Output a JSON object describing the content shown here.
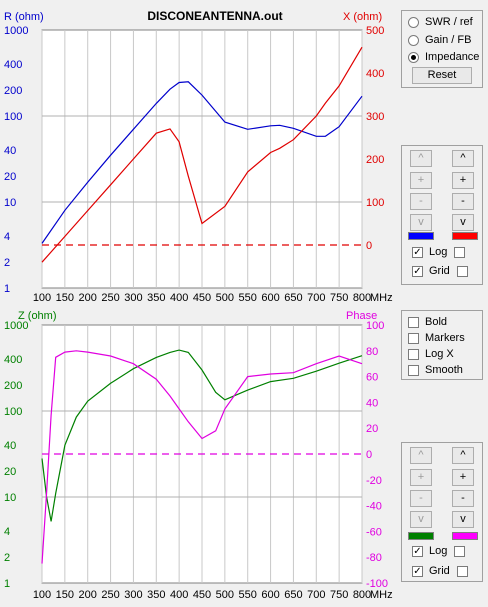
{
  "window_title": "DISCONEANTENNA.out",
  "top_chart": {
    "left_axis_label": "R (ohm)",
    "right_axis_label": "X (ohm)",
    "left_ticks": [
      "1000",
      "400",
      "200",
      "100",
      "40",
      "20",
      "10",
      "4",
      "2",
      "1"
    ],
    "right_ticks": [
      "500",
      "400",
      "300",
      "200",
      "100",
      "0"
    ],
    "left_color": "#0000cc",
    "right_color": "#e00000"
  },
  "bottom_chart": {
    "left_axis_label": "Z (ohm)",
    "right_axis_label": "Phase",
    "left_ticks": [
      "1000",
      "400",
      "200",
      "100",
      "40",
      "20",
      "10",
      "4",
      "2",
      "1"
    ],
    "right_ticks": [
      "100",
      "80",
      "60",
      "40",
      "20",
      "0",
      "-20",
      "-40",
      "-60",
      "-80",
      "-100"
    ],
    "left_color": "#008000",
    "right_color": "#e000e0"
  },
  "x_ticks": [
    "100",
    "150",
    "200",
    "250",
    "300",
    "350",
    "400",
    "450",
    "500",
    "550",
    "600",
    "650",
    "700",
    "750",
    "800"
  ],
  "x_unit": "MHz",
  "chart_data": [
    {
      "type": "line",
      "title": "DISCONEANTENNA.out",
      "xlabel": "MHz",
      "ylabel": "R (ohm)",
      "y2label": "X (ohm)",
      "xlim": [
        100,
        800
      ],
      "ylim": [
        1,
        1000
      ],
      "y_scale": "log",
      "y2lim": [
        -100,
        500
      ],
      "grid": true,
      "x": [
        100,
        150,
        200,
        250,
        300,
        350,
        380,
        400,
        420,
        450,
        500,
        550,
        600,
        620,
        650,
        700,
        720,
        750,
        800
      ],
      "series": [
        {
          "name": "R (ohm)",
          "axis": "left",
          "color": "#0000cc",
          "values": [
            3.3,
            8,
            17,
            35,
            70,
            140,
            205,
            245,
            250,
            175,
            85,
            70,
            77,
            78,
            72,
            58,
            58,
            75,
            170
          ]
        },
        {
          "name": "X (ohm)",
          "axis": "right",
          "color": "#e00000",
          "values": [
            -40,
            20,
            80,
            140,
            200,
            260,
            270,
            240,
            160,
            50,
            90,
            170,
            215,
            225,
            245,
            300,
            330,
            370,
            460
          ]
        },
        {
          "name": "X = 0",
          "axis": "right",
          "color": "#e00000",
          "dashed": true,
          "values": [
            0,
            0,
            0,
            0,
            0,
            0,
            0,
            0,
            0,
            0,
            0,
            0,
            0,
            0,
            0,
            0,
            0,
            0,
            0
          ]
        }
      ]
    },
    {
      "type": "line",
      "xlabel": "MHz",
      "ylabel": "Z (ohm)",
      "y2label": "Phase",
      "xlim": [
        100,
        800
      ],
      "ylim": [
        1,
        1000
      ],
      "y_scale": "log",
      "y2lim": [
        -100,
        100
      ],
      "grid": true,
      "x": [
        100,
        110,
        120,
        130,
        150,
        175,
        200,
        250,
        300,
        350,
        380,
        400,
        420,
        450,
        480,
        500,
        550,
        600,
        650,
        700,
        750,
        800
      ],
      "series": [
        {
          "name": "Z (ohm)",
          "axis": "left",
          "color": "#008000",
          "values": [
            28,
            10,
            5.2,
            11,
            40,
            85,
            130,
            210,
            310,
            420,
            480,
            510,
            480,
            300,
            165,
            135,
            175,
            220,
            240,
            290,
            360,
            440
          ]
        },
        {
          "name": "Phase",
          "axis": "right",
          "color": "#e000e0",
          "values": [
            -85,
            -30,
            30,
            75,
            79,
            80,
            79,
            76,
            70,
            58,
            45,
            35,
            25,
            12,
            18,
            35,
            60,
            62,
            63,
            70,
            76,
            70
          ]
        },
        {
          "name": "Phase = 0",
          "axis": "right",
          "color": "#e000e0",
          "dashed": true,
          "values": [
            0,
            0,
            0,
            0,
            0,
            0,
            0,
            0,
            0,
            0,
            0,
            0,
            0,
            0,
            0,
            0,
            0,
            0,
            0,
            0,
            0,
            0
          ]
        }
      ]
    }
  ],
  "mode_panel": {
    "options": [
      "SWR / ref",
      "Gain / FB",
      "Impedance"
    ],
    "selected": "Impedance",
    "reset_label": "Reset"
  },
  "options_panel": {
    "items": [
      {
        "label": "Bold",
        "checked": false
      },
      {
        "label": "Markers",
        "checked": false
      },
      {
        "label": "Log X",
        "checked": false
      },
      {
        "label": "Smooth",
        "checked": false
      }
    ]
  },
  "scale_panel_top": {
    "buttons": [
      "^",
      "+",
      "-",
      "v"
    ],
    "log_label": "Log",
    "grid_label": "Grid",
    "left_color": "#0000ff",
    "right_color": "#ff0000"
  },
  "scale_panel_bottom": {
    "buttons": [
      "^",
      "+",
      "-",
      "v"
    ],
    "log_label": "Log",
    "grid_label": "Grid",
    "left_color": "#008000",
    "right_color": "#ff00ff"
  }
}
